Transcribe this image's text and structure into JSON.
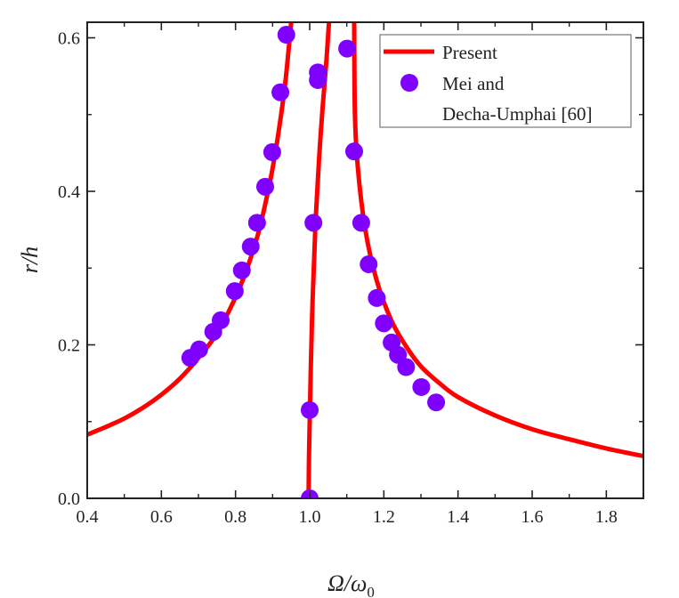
{
  "chart_data": {
    "type": "line",
    "title": "",
    "xlabel": "Ω/ω",
    "xlabel_subscript": "0",
    "ylabel": "r/h",
    "xlim": [
      0.4,
      1.9
    ],
    "ylim": [
      0.0,
      0.62
    ],
    "xticks": [
      "0.4",
      "0.6",
      "0.8",
      "1.0",
      "1.2",
      "1.4",
      "1.6",
      "1.8"
    ],
    "xtick_values": [
      0.4,
      0.6,
      0.8,
      1.0,
      1.2,
      1.4,
      1.6,
      1.8
    ],
    "yticks": [
      "0.0",
      "0.2",
      "0.4",
      "0.6"
    ],
    "ytick_values": [
      0.0,
      0.2,
      0.4,
      0.6
    ],
    "grid": false,
    "legend_position": "top-right",
    "colors": {
      "present": "#ff0000",
      "reference": "#7f00ff",
      "axis": "#222222"
    },
    "series": [
      {
        "name": "Present",
        "kind": "line",
        "branches": [
          {
            "x": [
              0.4,
              0.45,
              0.5,
              0.55,
              0.6,
              0.65,
              0.7,
              0.75,
              0.8,
              0.83,
              0.86,
              0.88,
              0.9,
              0.92,
              0.935,
              0.95
            ],
            "y": [
              0.083,
              0.093,
              0.104,
              0.118,
              0.135,
              0.156,
              0.183,
              0.215,
              0.262,
              0.298,
              0.343,
              0.383,
              0.43,
              0.49,
              0.545,
              0.62
            ]
          },
          {
            "x": [
              0.997,
              0.998,
              1.0,
              1.003,
              1.008,
              1.015,
              1.025,
              1.035,
              1.045,
              1.052
            ],
            "y": [
              0.0,
              0.05,
              0.1,
              0.17,
              0.26,
              0.35,
              0.44,
              0.51,
              0.57,
              0.62
            ]
          },
          {
            "x": [
              1.12,
              1.122,
              1.13,
              1.15,
              1.18,
              1.22,
              1.26,
              1.3,
              1.35,
              1.4,
              1.5,
              1.6,
              1.7,
              1.8,
              1.9
            ],
            "y": [
              0.62,
              0.5,
              0.43,
              0.35,
              0.285,
              0.232,
              0.198,
              0.172,
              0.15,
              0.132,
              0.108,
              0.09,
              0.077,
              0.065,
              0.055
            ]
          }
        ]
      },
      {
        "name": "Mei and Decha-Umphai [60]",
        "legend_lines": [
          "Mei and",
          "Decha-Umphai [60]"
        ],
        "kind": "scatter",
        "x": [
          0.678,
          0.702,
          0.74,
          0.76,
          0.798,
          0.817,
          0.841,
          0.858,
          0.88,
          0.899,
          0.921,
          0.937,
          1.0,
          1.0,
          1.01,
          1.022,
          1.022,
          1.101,
          1.12,
          1.139,
          1.159,
          1.181,
          1.2,
          1.221,
          1.238,
          1.26,
          1.301,
          1.341
        ],
        "y": [
          0.183,
          0.194,
          0.217,
          0.232,
          0.27,
          0.297,
          0.328,
          0.359,
          0.406,
          0.451,
          0.529,
          0.604,
          0.0,
          0.115,
          0.359,
          0.555,
          0.545,
          0.586,
          0.452,
          0.359,
          0.305,
          0.261,
          0.228,
          0.203,
          0.187,
          0.171,
          0.145,
          0.125
        ]
      }
    ]
  }
}
